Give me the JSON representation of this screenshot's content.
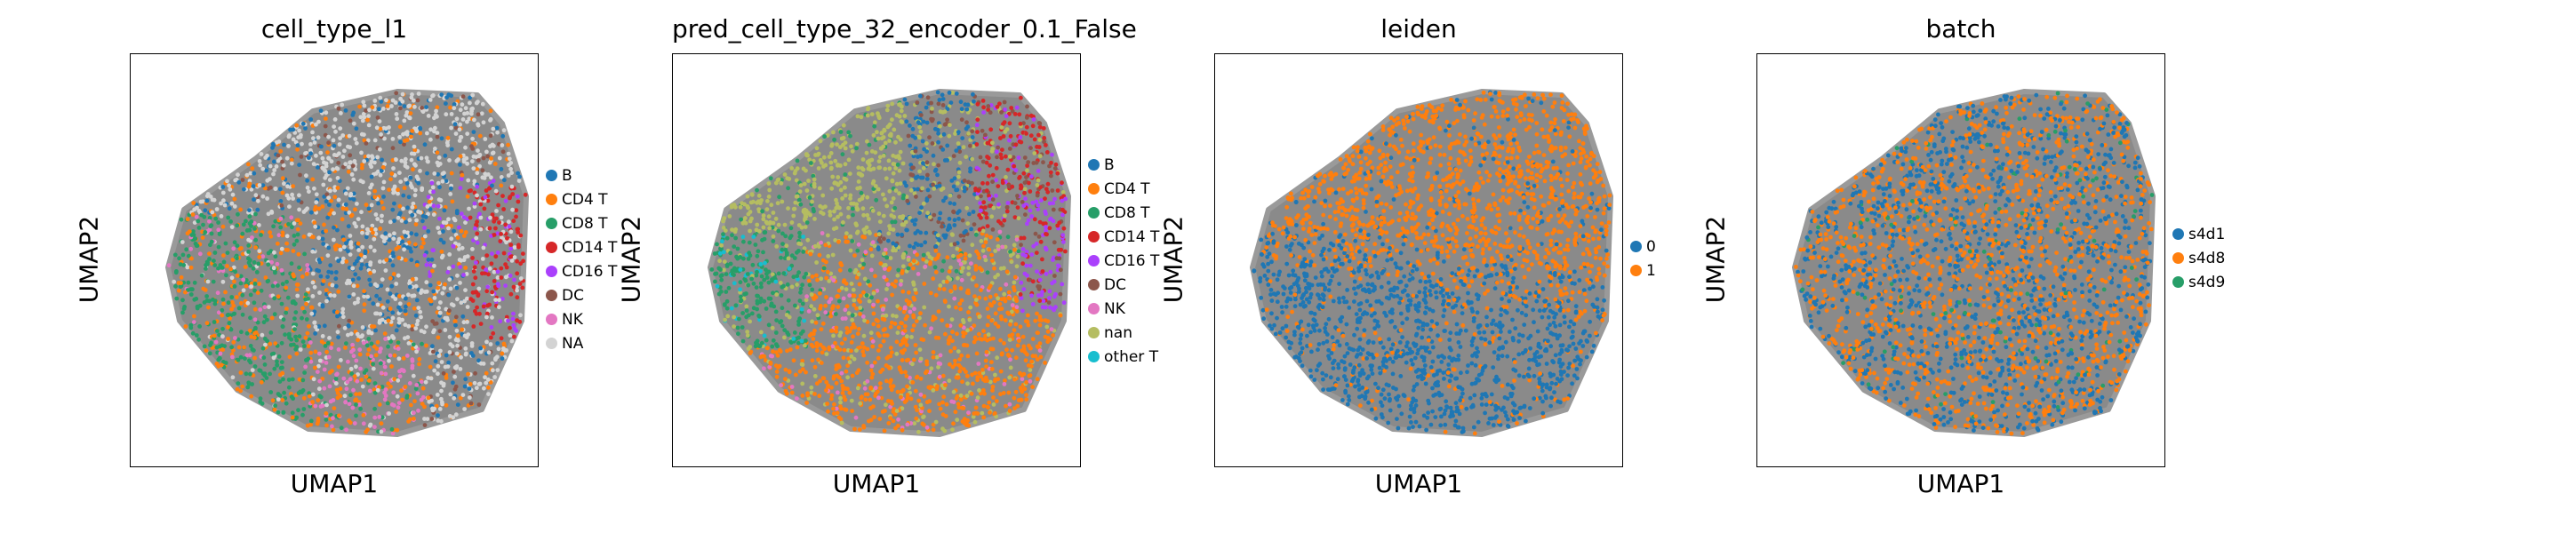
{
  "chart_data": [
    {
      "type": "scatter",
      "title": "cell_type_l1",
      "xlabel": "UMAP1",
      "ylabel": "UMAP2",
      "legend_position": "right",
      "categories": [
        {
          "label": "B",
          "color": "#1f77b4"
        },
        {
          "label": "CD4 T",
          "color": "#ff7f0e"
        },
        {
          "label": "CD8 T",
          "color": "#279e68"
        },
        {
          "label": "CD14 T",
          "color": "#d62728"
        },
        {
          "label": "CD16 T",
          "color": "#aa40fc"
        },
        {
          "label": "DC",
          "color": "#8c564b"
        },
        {
          "label": "NK",
          "color": "#e377c2"
        },
        {
          "label": "NA",
          "color": "#d3d3d3"
        }
      ],
      "regions": [
        "NA",
        "B",
        "CD4 T",
        "CD8 T",
        "CD14 T",
        "CD16 T",
        "DC",
        "NK"
      ]
    },
    {
      "type": "scatter",
      "title": "pred_cell_type_32_encoder_0.1_False",
      "xlabel": "UMAP1",
      "ylabel": "UMAP2",
      "legend_position": "right",
      "categories": [
        {
          "label": "B",
          "color": "#1f77b4"
        },
        {
          "label": "CD4 T",
          "color": "#ff7f0e"
        },
        {
          "label": "CD8 T",
          "color": "#279e68"
        },
        {
          "label": "CD14 T",
          "color": "#d62728"
        },
        {
          "label": "CD16 T",
          "color": "#aa40fc"
        },
        {
          "label": "DC",
          "color": "#8c564b"
        },
        {
          "label": "NK",
          "color": "#e377c2"
        },
        {
          "label": "nan",
          "color": "#b5bd61"
        },
        {
          "label": "other T",
          "color": "#17becf"
        }
      ]
    },
    {
      "type": "scatter",
      "title": "leiden",
      "xlabel": "UMAP1",
      "ylabel": "UMAP2",
      "legend_position": "right",
      "categories": [
        {
          "label": "0",
          "color": "#1f77b4"
        },
        {
          "label": "1",
          "color": "#ff7f0e"
        }
      ]
    },
    {
      "type": "scatter",
      "title": "batch",
      "xlabel": "UMAP1",
      "ylabel": "UMAP2",
      "legend_position": "right",
      "categories": [
        {
          "label": "s4d1",
          "color": "#1f77b4"
        },
        {
          "label": "s4d8",
          "color": "#ff7f0e"
        },
        {
          "label": "s4d9",
          "color": "#279e68"
        }
      ]
    }
  ]
}
